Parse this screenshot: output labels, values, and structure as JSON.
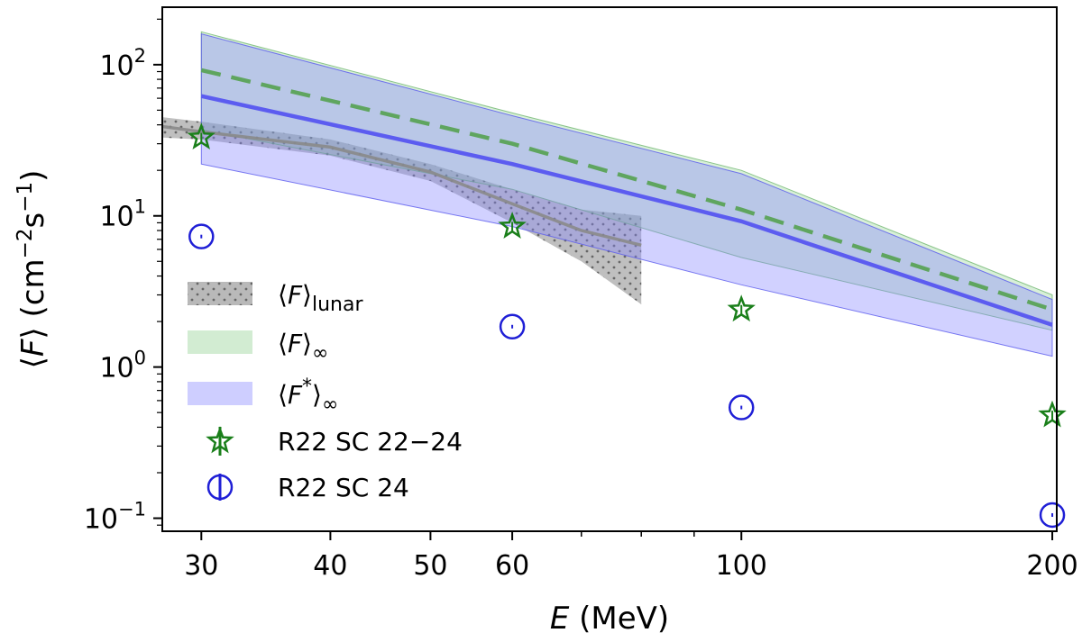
{
  "chart_data": {
    "type": "line",
    "xscale": "log",
    "yscale": "log",
    "xlim": [
      27.5,
      202
    ],
    "ylim": [
      0.082,
      240
    ],
    "xlabel": {
      "var": "E",
      "unit": "(MeV)"
    },
    "ylabel": {
      "pre": "⟨",
      "var": "F",
      "post": "⟩ (cm",
      "exp1": "−2",
      "mid": "s",
      "exp2": "−1",
      "end": ")"
    },
    "x_ticks": [
      {
        "value": 30,
        "label": "30"
      },
      {
        "value": 40,
        "label": "40"
      },
      {
        "value": 50,
        "label": "50"
      },
      {
        "value": 60,
        "label": "60"
      },
      {
        "value": 100,
        "label": "100"
      },
      {
        "value": 200,
        "label": "200"
      }
    ],
    "x_minor_ticks": [
      70,
      80,
      90
    ],
    "y_ticks": [
      {
        "value": 0.1,
        "base": "10",
        "exp": "−1"
      },
      {
        "value": 1,
        "base": "10",
        "exp": "0"
      },
      {
        "value": 10,
        "base": "10",
        "exp": "1"
      },
      {
        "value": 100,
        "base": "10",
        "exp": "2"
      }
    ],
    "grid": false,
    "legend_position": "center-left",
    "bands": [
      {
        "id": "lunar",
        "label_pre": "⟨",
        "label_var": "F",
        "label_post": "⟩",
        "label_sub": "lunar",
        "color": "#808080",
        "hatch": "dots",
        "x": [
          27.5,
          30,
          40,
          50,
          60,
          70,
          80
        ],
        "upper": [
          45,
          42,
          32,
          22,
          15,
          11,
          10
        ],
        "lower": [
          33,
          32,
          25,
          17,
          9,
          5,
          2.6
        ],
        "center": [
          39,
          36,
          28.5,
          19.5,
          12,
          8,
          6.4
        ]
      },
      {
        "id": "F_inf",
        "label_pre": "⟨",
        "label_var": "F",
        "label_post": "⟩",
        "label_sub": "∞",
        "color": "#7fc97f",
        "x": [
          30,
          60,
          100,
          200
        ],
        "upper": [
          165,
          48,
          20,
          3.0
        ],
        "lower": [
          37,
          15,
          5.3,
          1.75
        ],
        "median": [
          92,
          30,
          11,
          2.4
        ]
      },
      {
        "id": "Fstar_inf",
        "label_pre": "⟨",
        "label_var": "F",
        "label_sup": "*",
        "label_post": "⟩",
        "label_sub": "∞",
        "color": "#8585ff",
        "x": [
          30,
          60,
          100,
          200
        ],
        "upper": [
          160,
          46,
          19,
          2.8
        ],
        "lower": [
          22,
          8.5,
          3.5,
          1.18
        ],
        "median": [
          62,
          22,
          9.2,
          1.9
        ]
      }
    ],
    "series": [
      {
        "name": "R22 SC 22−24",
        "marker": "star",
        "color": "#1a7f1a",
        "x": [
          30,
          60,
          100,
          200
        ],
        "y": [
          33,
          8.5,
          2.4,
          0.48
        ]
      },
      {
        "name": "R22 SC 24",
        "marker": "circle",
        "color": "#1f1fd6",
        "x": [
          30,
          60,
          100,
          200
        ],
        "y": [
          7.3,
          1.85,
          0.54,
          0.105
        ]
      }
    ]
  }
}
